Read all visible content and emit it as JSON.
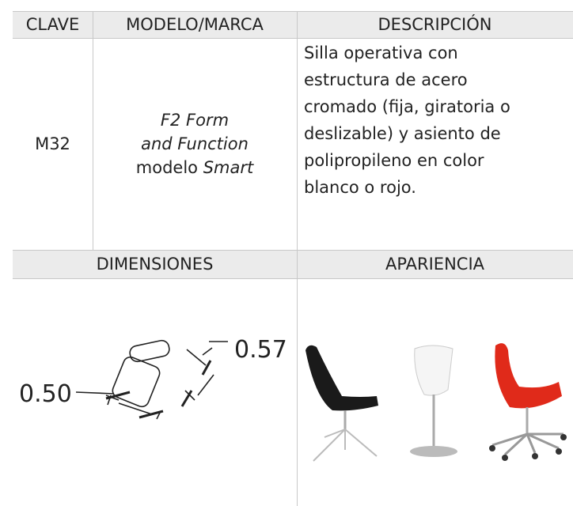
{
  "table": {
    "header": [
      "CLAVE",
      "MODELO/MARCA",
      "DESCRIPCIÓN"
    ],
    "row": {
      "clave": "M32",
      "model_line1": "F2 Form",
      "model_line2": "and Function",
      "model_line3": "modelo",
      "model_line3_italic": "Smart",
      "description_lines": [
        "Silla operativa con",
        "estructura de acero",
        "cromado (fija, giratoria o",
        "deslizable) y asiento de",
        "polipropileno en color",
        "blanco o rojo."
      ]
    },
    "header2": [
      "DIMENSIONES",
      "APARIENCIA"
    ],
    "dimensions": {
      "depth": "0.50",
      "width": "0.57"
    }
  }
}
